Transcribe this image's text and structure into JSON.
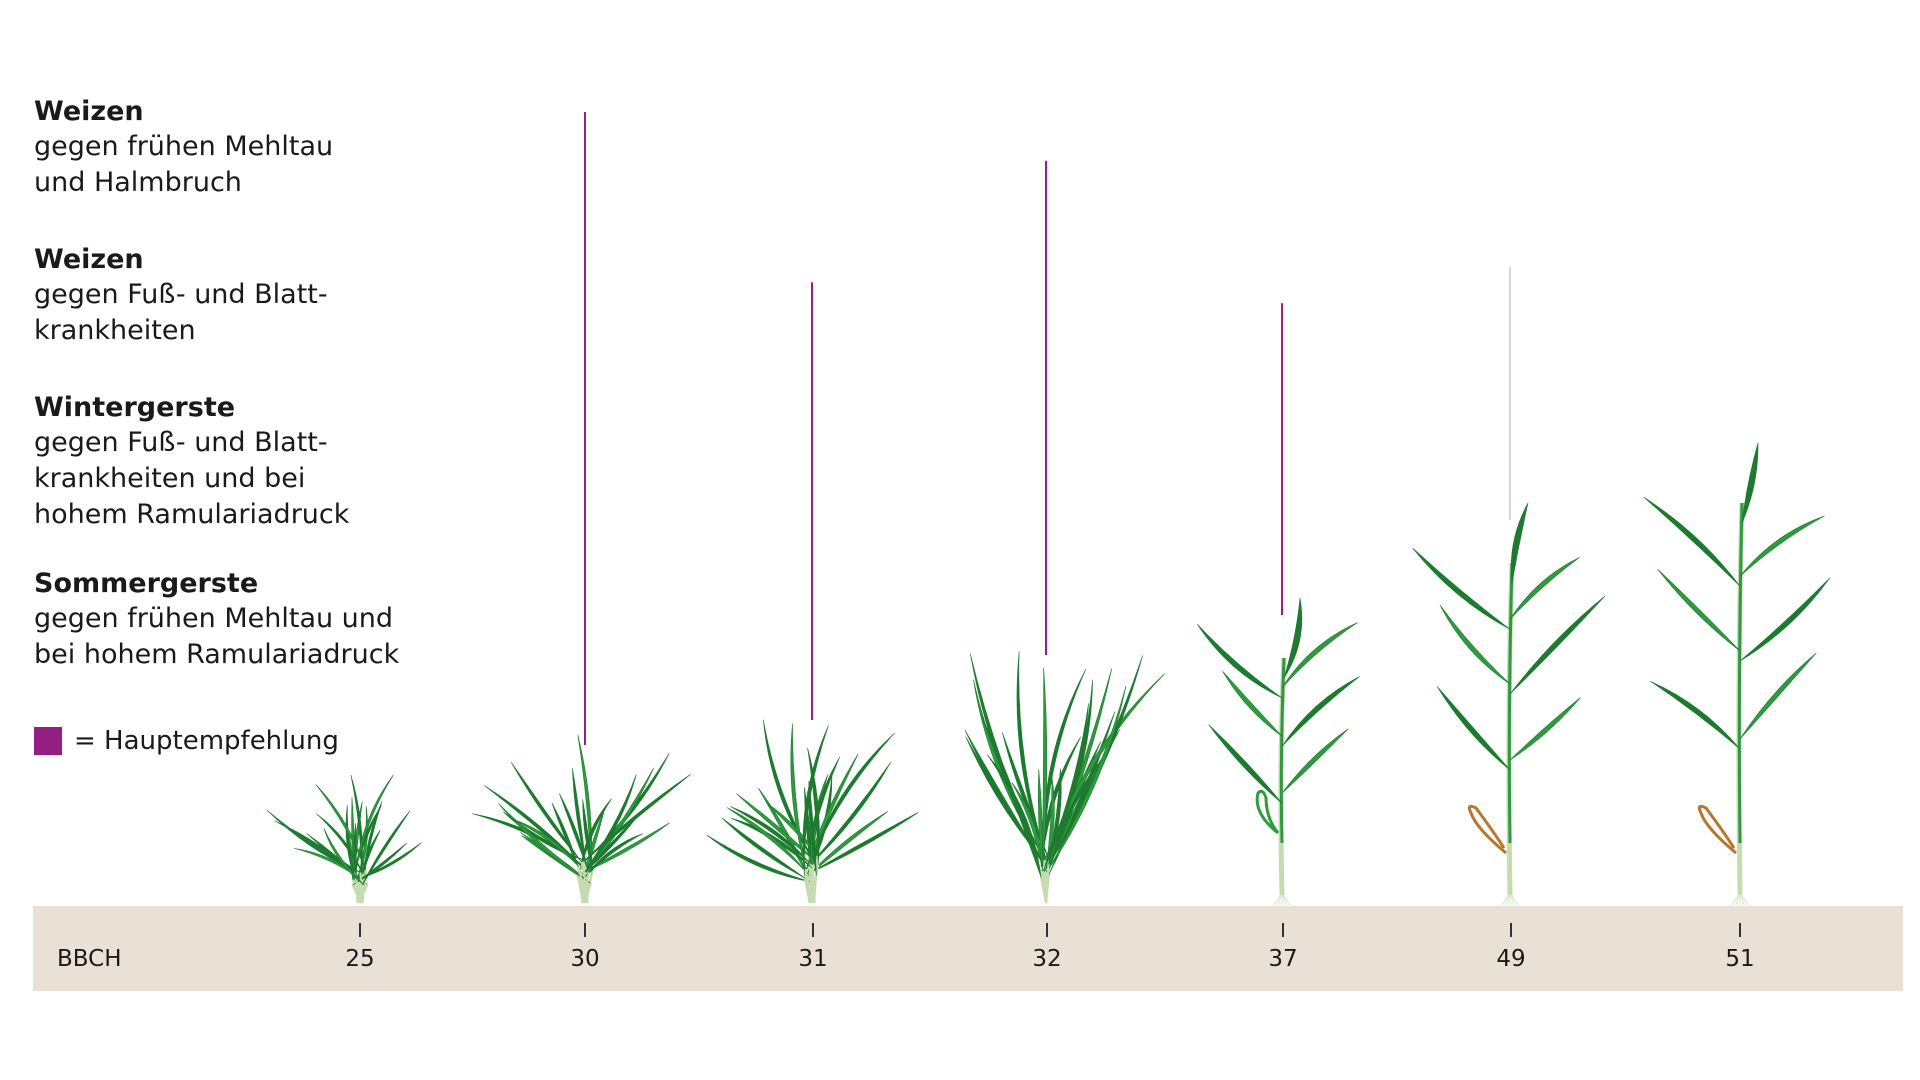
{
  "colors": {
    "main_recommendation": "#951f82",
    "secondary_line": "#d7d4e6",
    "leaf_dark": "#1d7a2f",
    "leaf_mid": "#2f9a3e",
    "stem_pale": "#c6dcb0",
    "dry_leaf": "#b7762e",
    "axis_band": "#e9e1d5"
  },
  "legend": {
    "groups": [
      {
        "crop": "Weizen",
        "lines": [
          "gegen frühen Mehltau",
          "und Halmbruch"
        ]
      },
      {
        "crop": "Weizen",
        "lines": [
          "gegen Fuß- und Blatt-",
          "krankheiten"
        ]
      },
      {
        "crop": "Wintergerste",
        "lines": [
          "gegen Fuß- und Blatt-",
          "krankheiten und bei",
          "hohem Ramulariadruck"
        ]
      },
      {
        "crop": "Sommergerste",
        "lines": [
          "gegen frühen Mehltau und",
          "bei hohem Ramulariadruck"
        ]
      }
    ],
    "key_label": "= Hauptempfehlung"
  },
  "axis": {
    "title": "BBCH",
    "stages": [
      {
        "label": "25",
        "recommendation": "none"
      },
      {
        "label": "30",
        "recommendation": "main",
        "line_level": 1.0
      },
      {
        "label": "31",
        "recommendation": "main",
        "line_level": 0.72
      },
      {
        "label": "32",
        "recommendation": "main",
        "line_level": 0.91
      },
      {
        "label": "37",
        "recommendation": "main",
        "line_level": 0.62
      },
      {
        "label": "49",
        "recommendation": "secondary",
        "line_level": 0.62
      },
      {
        "label": "51",
        "recommendation": "none"
      }
    ]
  },
  "plants": [
    {
      "stage": "25",
      "form": "tiller"
    },
    {
      "stage": "30",
      "form": "tiller"
    },
    {
      "stage": "31",
      "form": "tiller"
    },
    {
      "stage": "32",
      "form": "erect"
    },
    {
      "stage": "37",
      "form": "stem"
    },
    {
      "stage": "49",
      "form": "stem"
    },
    {
      "stage": "51",
      "form": "stem"
    }
  ]
}
